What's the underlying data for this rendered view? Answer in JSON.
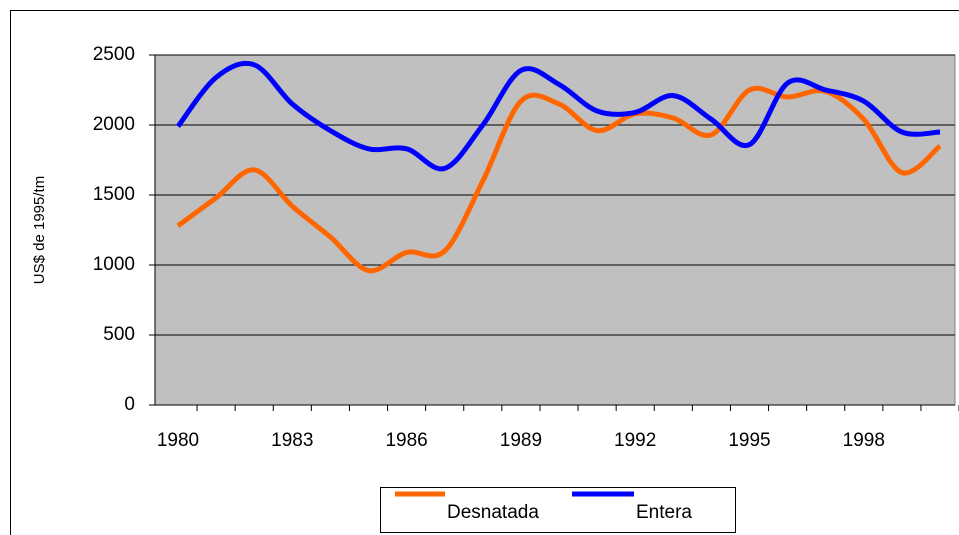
{
  "chart_data": {
    "type": "line",
    "y_label": "US$ de 1995/tm",
    "categories": [
      "1980",
      null,
      null,
      "1983",
      null,
      null,
      "1986",
      null,
      null,
      "1989",
      null,
      null,
      "1992",
      null,
      null,
      "1995",
      null,
      null,
      "1998",
      null,
      null
    ],
    "series": [
      {
        "name": "Desnatada",
        "color": "#ff6600",
        "values": [
          1280,
          1480,
          1680,
          1420,
          1200,
          960,
          1090,
          1100,
          1600,
          2170,
          2150,
          1960,
          2080,
          2050,
          1930,
          2250,
          2200,
          2240,
          2040,
          1660,
          1850
        ]
      },
      {
        "name": "Entera",
        "color": "#0000ff",
        "values": [
          1990,
          2340,
          2430,
          2150,
          1960,
          1830,
          1830,
          1690,
          2000,
          2390,
          2290,
          2100,
          2090,
          2210,
          2040,
          1860,
          2300,
          2250,
          2170,
          1950,
          1950
        ]
      }
    ],
    "ylim": [
      0,
      2500
    ],
    "yticks": [
      0,
      500,
      1000,
      1500,
      2000,
      2500
    ],
    "grid": true,
    "legend": "bottom",
    "smooth": true,
    "plot_background": "#c0c0c0"
  }
}
